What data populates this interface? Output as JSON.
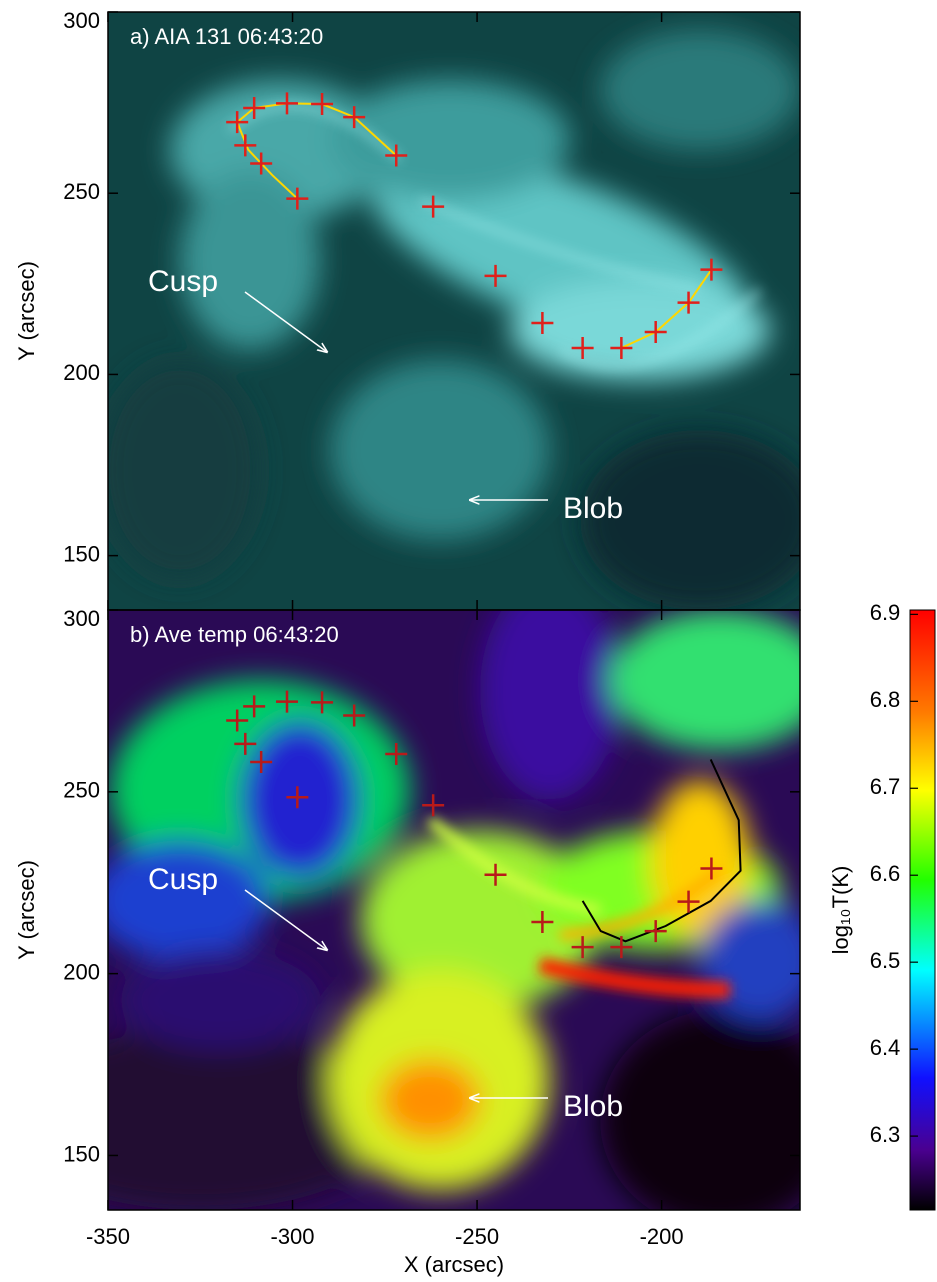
{
  "chart_data": [
    {
      "type": "image",
      "title": "a) AIA 131 06:43:20",
      "ylabel": "Y (arcsec)",
      "xlim": [
        -350,
        -162.5
      ],
      "ylim": [
        135,
        300
      ],
      "xticks": [
        -350,
        -300,
        -250,
        -200
      ],
      "yticks": [
        150,
        200,
        250,
        300
      ],
      "markers": {
        "color": "#e0201b",
        "x": [
          -315.0,
          -310.4,
          -301.5,
          -292.0,
          -283.3,
          -271.9,
          -312.8,
          -308.5,
          -298.7,
          -261.9,
          -245.0,
          -232.3,
          -221.4,
          -210.9,
          -201.6,
          -192.7,
          -186.5
        ],
        "y": [
          269.6,
          273.5,
          274.8,
          274.6,
          271.0,
          260.4,
          263.2,
          258.2,
          248.5,
          246.3,
          227.2,
          214.2,
          207.3,
          207.3,
          211.7,
          219.8,
          228.9
        ]
      },
      "curves": [
        {
          "color": "#ffd700",
          "x": [
            -298.7,
            -305.5,
            -312.0,
            -315.0,
            -310.4,
            -301.5,
            -292.0,
            -283.3,
            -271.9
          ],
          "y": [
            248.5,
            255.0,
            262.0,
            269.6,
            273.5,
            274.8,
            274.6,
            271.0,
            260.4
          ]
        },
        {
          "color": "#ffd700",
          "x": [
            -213.5,
            -210.9,
            -201.6,
            -192.7,
            -186.5
          ],
          "y": [
            207.3,
            207.3,
            211.7,
            219.8,
            228.9
          ]
        }
      ],
      "annotations": [
        "Cusp",
        "Blob"
      ]
    },
    {
      "type": "image",
      "title": "b) Ave temp 06:43:20",
      "xlabel": "X (arcsec)",
      "ylabel": "Y (arcsec)",
      "xlim": [
        -350,
        -162.5
      ],
      "ylim": [
        135,
        300
      ],
      "xticks": [
        -350,
        -300,
        -250,
        -200
      ],
      "yticks": [
        150,
        200,
        250,
        300
      ],
      "markers": {
        "color": "#b81a1a",
        "x": [
          -315.0,
          -310.4,
          -301.5,
          -292.0,
          -283.3,
          -271.9,
          -312.8,
          -308.5,
          -298.7,
          -261.9,
          -245.0,
          -232.3,
          -221.4,
          -210.9,
          -201.6,
          -192.7,
          -186.5
        ],
        "y": [
          269.6,
          273.5,
          274.8,
          274.6,
          271.0,
          260.4,
          263.2,
          258.2,
          248.5,
          246.3,
          227.2,
          214.2,
          207.3,
          207.3,
          211.7,
          219.8,
          228.9
        ]
      },
      "curves": [
        {
          "color": "#000000",
          "x": [
            -221.4,
            -216.5,
            -209.8,
            -198.9,
            -186.7,
            -178.6,
            -179.1,
            -186.7
          ],
          "y": [
            220.0,
            211.7,
            208.9,
            213.1,
            220.0,
            228.3,
            242.2,
            258.9
          ]
        }
      ],
      "annotations": [
        "Cusp",
        "Blob"
      ],
      "colorbar": {
        "label": "log₁₀T(K)",
        "clim": [
          6.215,
          6.905
        ],
        "ticks": [
          6.3,
          6.4,
          6.5,
          6.6,
          6.7,
          6.8,
          6.9
        ]
      }
    }
  ]
}
